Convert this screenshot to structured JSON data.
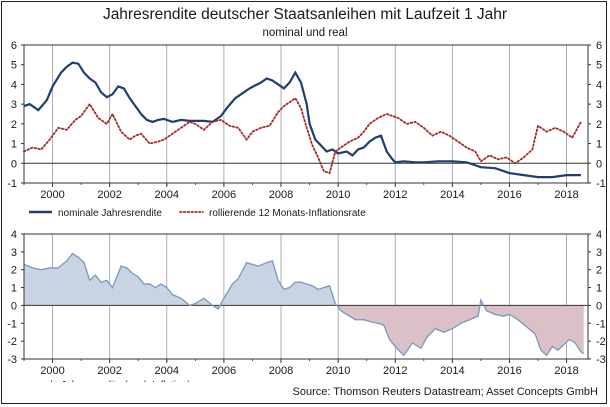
{
  "title": "Jahresrendite deutscher Staatsanleihen mit Laufzeit 1 Jahr",
  "subtitle": "nominal und real",
  "source": "Source: Thomson Reuters Datastream; Asset Concepts GmbH",
  "colors": {
    "nominal": "#1f3f6e",
    "inflation": "#a52a2a",
    "real": "#7f9cbf",
    "real_fill_pos": "#c9d4e3",
    "real_fill_neg": "#dcc0c8"
  },
  "chart_data": [
    {
      "type": "line",
      "title": "nominal und real",
      "x_ticks": [
        "2000",
        "2002",
        "2004",
        "2006",
        "2008",
        "2010",
        "2012",
        "2014",
        "2016",
        "2018"
      ],
      "xlim": [
        1999.0,
        2018.75
      ],
      "ylim": [
        -1,
        6
      ],
      "y_ticks": [
        "-1",
        "0",
        "1",
        "2",
        "3",
        "4",
        "5",
        "6"
      ],
      "grid": "vertical",
      "legend": "bottom",
      "series": [
        {
          "name": "nominale Jahresrendite",
          "style": "solid",
          "points": [
            [
              1999.0,
              2.9
            ],
            [
              1999.2,
              3.0
            ],
            [
              1999.5,
              2.7
            ],
            [
              1999.8,
              3.2
            ],
            [
              2000.0,
              3.9
            ],
            [
              2000.3,
              4.6
            ],
            [
              2000.5,
              4.9
            ],
            [
              2000.7,
              5.1
            ],
            [
              2000.9,
              5.05
            ],
            [
              2001.1,
              4.6
            ],
            [
              2001.3,
              4.3
            ],
            [
              2001.5,
              4.1
            ],
            [
              2001.7,
              3.6
            ],
            [
              2001.9,
              3.35
            ],
            [
              2002.1,
              3.5
            ],
            [
              2002.3,
              3.9
            ],
            [
              2002.5,
              3.8
            ],
            [
              2002.7,
              3.3
            ],
            [
              2002.9,
              2.9
            ],
            [
              2003.1,
              2.5
            ],
            [
              2003.3,
              2.2
            ],
            [
              2003.5,
              2.1
            ],
            [
              2003.7,
              2.2
            ],
            [
              2003.9,
              2.25
            ],
            [
              2004.2,
              2.1
            ],
            [
              2004.5,
              2.2
            ],
            [
              2004.8,
              2.15
            ],
            [
              2005.0,
              2.15
            ],
            [
              2005.3,
              2.15
            ],
            [
              2005.6,
              2.1
            ],
            [
              2005.9,
              2.4
            ],
            [
              2006.1,
              2.8
            ],
            [
              2006.4,
              3.3
            ],
            [
              2006.7,
              3.6
            ],
            [
              2006.9,
              3.8
            ],
            [
              2007.1,
              3.95
            ],
            [
              2007.3,
              4.1
            ],
            [
              2007.5,
              4.3
            ],
            [
              2007.7,
              4.2
            ],
            [
              2007.9,
              4.0
            ],
            [
              2008.1,
              3.8
            ],
            [
              2008.3,
              4.1
            ],
            [
              2008.5,
              4.6
            ],
            [
              2008.7,
              4.1
            ],
            [
              2008.9,
              3.0
            ],
            [
              2009.0,
              2.0
            ],
            [
              2009.2,
              1.2
            ],
            [
              2009.4,
              0.9
            ],
            [
              2009.6,
              0.6
            ],
            [
              2009.8,
              0.7
            ],
            [
              2010.0,
              0.5
            ],
            [
              2010.3,
              0.6
            ],
            [
              2010.5,
              0.4
            ],
            [
              2010.7,
              0.7
            ],
            [
              2010.9,
              0.8
            ],
            [
              2011.1,
              1.1
            ],
            [
              2011.3,
              1.3
            ],
            [
              2011.5,
              1.4
            ],
            [
              2011.7,
              0.6
            ],
            [
              2011.9,
              0.2
            ],
            [
              2012.0,
              0.05
            ],
            [
              2012.3,
              0.1
            ],
            [
              2012.7,
              0.05
            ],
            [
              2013.0,
              0.05
            ],
            [
              2013.5,
              0.1
            ],
            [
              2014.0,
              0.1
            ],
            [
              2014.5,
              0.05
            ],
            [
              2015.0,
              -0.2
            ],
            [
              2015.5,
              -0.25
            ],
            [
              2016.0,
              -0.5
            ],
            [
              2016.5,
              -0.6
            ],
            [
              2017.0,
              -0.7
            ],
            [
              2017.5,
              -0.7
            ],
            [
              2018.0,
              -0.6
            ],
            [
              2018.5,
              -0.6
            ]
          ]
        },
        {
          "name": "rollierende 12 Monats-Inflationsrate",
          "style": "dotted",
          "points": [
            [
              1999.0,
              0.6
            ],
            [
              1999.3,
              0.8
            ],
            [
              1999.6,
              0.7
            ],
            [
              1999.9,
              1.2
            ],
            [
              2000.2,
              1.8
            ],
            [
              2000.5,
              1.7
            ],
            [
              2000.8,
              2.2
            ],
            [
              2001.0,
              2.4
            ],
            [
              2001.3,
              3.0
            ],
            [
              2001.6,
              2.3
            ],
            [
              2001.9,
              2.0
            ],
            [
              2002.1,
              2.5
            ],
            [
              2002.4,
              1.6
            ],
            [
              2002.7,
              1.2
            ],
            [
              2002.9,
              1.4
            ],
            [
              2003.1,
              1.5
            ],
            [
              2003.4,
              1.0
            ],
            [
              2003.7,
              1.1
            ],
            [
              2003.9,
              1.2
            ],
            [
              2004.2,
              1.5
            ],
            [
              2004.5,
              1.8
            ],
            [
              2004.8,
              2.1
            ],
            [
              2005.0,
              2.0
            ],
            [
              2005.3,
              1.7
            ],
            [
              2005.6,
              2.1
            ],
            [
              2005.9,
              2.2
            ],
            [
              2006.2,
              1.9
            ],
            [
              2006.5,
              1.8
            ],
            [
              2006.8,
              1.2
            ],
            [
              2007.0,
              1.6
            ],
            [
              2007.3,
              1.8
            ],
            [
              2007.6,
              1.9
            ],
            [
              2007.9,
              2.6
            ],
            [
              2008.1,
              2.9
            ],
            [
              2008.3,
              3.1
            ],
            [
              2008.5,
              3.3
            ],
            [
              2008.7,
              2.8
            ],
            [
              2008.9,
              1.8
            ],
            [
              2009.1,
              0.9
            ],
            [
              2009.3,
              0.3
            ],
            [
              2009.5,
              -0.4
            ],
            [
              2009.7,
              -0.5
            ],
            [
              2009.9,
              0.6
            ],
            [
              2010.1,
              0.8
            ],
            [
              2010.4,
              1.1
            ],
            [
              2010.7,
              1.3
            ],
            [
              2010.9,
              1.6
            ],
            [
              2011.1,
              2.0
            ],
            [
              2011.4,
              2.3
            ],
            [
              2011.7,
              2.5
            ],
            [
              2011.9,
              2.4
            ],
            [
              2012.1,
              2.3
            ],
            [
              2012.4,
              2.0
            ],
            [
              2012.7,
              2.1
            ],
            [
              2013.0,
              1.8
            ],
            [
              2013.3,
              1.4
            ],
            [
              2013.6,
              1.6
            ],
            [
              2013.9,
              1.4
            ],
            [
              2014.2,
              1.1
            ],
            [
              2014.5,
              0.8
            ],
            [
              2014.8,
              0.6
            ],
            [
              2015.0,
              0.1
            ],
            [
              2015.3,
              0.4
            ],
            [
              2015.6,
              0.2
            ],
            [
              2015.9,
              0.3
            ],
            [
              2016.2,
              0.0
            ],
            [
              2016.5,
              0.3
            ],
            [
              2016.8,
              0.7
            ],
            [
              2017.0,
              1.9
            ],
            [
              2017.3,
              1.6
            ],
            [
              2017.6,
              1.8
            ],
            [
              2017.9,
              1.6
            ],
            [
              2018.2,
              1.3
            ],
            [
              2018.5,
              2.1
            ]
          ]
        }
      ]
    },
    {
      "type": "area",
      "x_ticks": [
        "2000",
        "2002",
        "2004",
        "2006",
        "2008",
        "2010",
        "2012",
        "2014",
        "2016",
        "2018"
      ],
      "xlim": [
        1999.0,
        2018.75
      ],
      "ylim": [
        -3,
        4
      ],
      "y_ticks": [
        "-3",
        "-2",
        "-1",
        "0",
        "1",
        "2",
        "3",
        "4"
      ],
      "grid": "vertical",
      "legend": "bottom-left",
      "series": [
        {
          "name": "reale Jahresrendite (nach Inflation)",
          "points": [
            [
              1999.0,
              2.3
            ],
            [
              1999.3,
              2.1
            ],
            [
              1999.6,
              2.0
            ],
            [
              1999.9,
              2.1
            ],
            [
              2000.2,
              2.1
            ],
            [
              2000.5,
              2.5
            ],
            [
              2000.7,
              2.9
            ],
            [
              2000.9,
              2.7
            ],
            [
              2001.1,
              2.4
            ],
            [
              2001.3,
              1.4
            ],
            [
              2001.5,
              1.7
            ],
            [
              2001.7,
              1.3
            ],
            [
              2001.9,
              1.4
            ],
            [
              2002.1,
              1.0
            ],
            [
              2002.4,
              2.2
            ],
            [
              2002.6,
              2.1
            ],
            [
              2002.8,
              1.8
            ],
            [
              2003.0,
              1.6
            ],
            [
              2003.2,
              1.2
            ],
            [
              2003.4,
              1.2
            ],
            [
              2003.6,
              1.0
            ],
            [
              2003.8,
              1.2
            ],
            [
              2004.0,
              1.0
            ],
            [
              2004.2,
              0.6
            ],
            [
              2004.5,
              0.4
            ],
            [
              2004.8,
              0.0
            ],
            [
              2005.0,
              0.1
            ],
            [
              2005.3,
              0.4
            ],
            [
              2005.6,
              0.0
            ],
            [
              2005.8,
              -0.2
            ],
            [
              2006.0,
              0.4
            ],
            [
              2006.3,
              1.2
            ],
            [
              2006.5,
              1.5
            ],
            [
              2006.8,
              2.4
            ],
            [
              2007.0,
              2.3
            ],
            [
              2007.2,
              2.2
            ],
            [
              2007.5,
              2.4
            ],
            [
              2007.7,
              2.5
            ],
            [
              2007.9,
              1.4
            ],
            [
              2008.1,
              0.9
            ],
            [
              2008.3,
              1.0
            ],
            [
              2008.5,
              1.3
            ],
            [
              2008.7,
              1.3
            ],
            [
              2008.9,
              1.2
            ],
            [
              2009.1,
              1.1
            ],
            [
              2009.3,
              0.9
            ],
            [
              2009.5,
              1.0
            ],
            [
              2009.7,
              1.1
            ],
            [
              2009.9,
              0.1
            ],
            [
              2010.1,
              -0.3
            ],
            [
              2010.3,
              -0.5
            ],
            [
              2010.6,
              -0.8
            ],
            [
              2010.9,
              -0.8
            ],
            [
              2011.1,
              -0.9
            ],
            [
              2011.4,
              -1.0
            ],
            [
              2011.6,
              -1.1
            ],
            [
              2011.8,
              -1.9
            ],
            [
              2012.0,
              -2.3
            ],
            [
              2012.3,
              -2.8
            ],
            [
              2012.6,
              -2.1
            ],
            [
              2012.9,
              -2.4
            ],
            [
              2013.1,
              -1.8
            ],
            [
              2013.4,
              -1.3
            ],
            [
              2013.7,
              -1.5
            ],
            [
              2014.0,
              -1.3
            ],
            [
              2014.3,
              -1.0
            ],
            [
              2014.6,
              -0.8
            ],
            [
              2014.9,
              -0.6
            ],
            [
              2015.0,
              0.3
            ],
            [
              2015.2,
              -0.3
            ],
            [
              2015.5,
              -0.5
            ],
            [
              2015.8,
              -0.6
            ],
            [
              2016.0,
              -0.5
            ],
            [
              2016.3,
              -0.8
            ],
            [
              2016.6,
              -1.2
            ],
            [
              2016.9,
              -1.6
            ],
            [
              2017.1,
              -2.5
            ],
            [
              2017.3,
              -2.8
            ],
            [
              2017.5,
              -2.3
            ],
            [
              2017.7,
              -2.5
            ],
            [
              2017.9,
              -2.2
            ],
            [
              2018.1,
              -1.9
            ],
            [
              2018.3,
              -2.1
            ],
            [
              2018.5,
              -2.6
            ],
            [
              2018.6,
              -2.7
            ]
          ]
        }
      ]
    }
  ]
}
